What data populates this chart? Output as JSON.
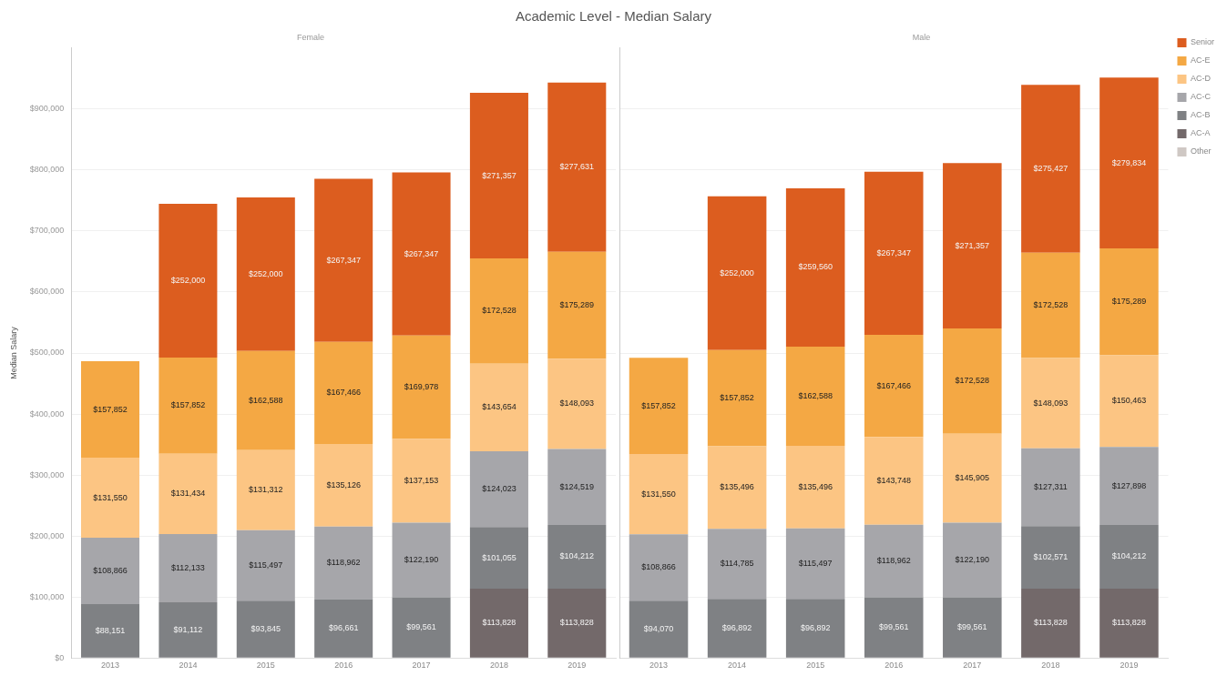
{
  "chart_data": [
    {
      "type": "bar",
      "title": "Academic Level - Median Salary",
      "subtitle": "Female",
      "ylabel": "Median Salary",
      "stacked": true,
      "grid": "y",
      "legend": false,
      "categories": [
        "2013",
        "2014",
        "2015",
        "2016",
        "2017",
        "2018",
        "2019"
      ],
      "ylim": [
        0,
        1000000
      ],
      "yticks": [
        {
          "value": 0,
          "label": "$0"
        },
        {
          "value": 100000,
          "label": "$100,000"
        },
        {
          "value": 200000,
          "label": "$200,000"
        },
        {
          "value": 300000,
          "label": "$300,000"
        },
        {
          "value": 400000,
          "label": "$400,000"
        },
        {
          "value": 500000,
          "label": "$500,000"
        },
        {
          "value": 600000,
          "label": "$600,000"
        },
        {
          "value": 700000,
          "label": "$700,000"
        },
        {
          "value": 800000,
          "label": "$800,000"
        },
        {
          "value": 900000,
          "label": "$900,000"
        }
      ],
      "series": [
        {
          "color": "#cfc8c4",
          "values": [
            null,
            null,
            null,
            null,
            null,
            null,
            null
          ]
        },
        {
          "color": "#73696a",
          "values": [
            null,
            null,
            null,
            null,
            null,
            113828,
            113828
          ],
          "value_labels": [
            null,
            null,
            null,
            null,
            null,
            "$113,828",
            "$113,828"
          ]
        },
        {
          "color": "#7f8184",
          "values": [
            88151,
            91112,
            93845,
            96661,
            99561,
            101055,
            104212
          ],
          "value_labels": [
            "$88,151",
            "$91,112",
            "$93,845",
            "$96,661",
            "$99,561",
            "$101,055",
            "$104,212"
          ]
        },
        {
          "color": "#a6a6aa",
          "values": [
            108866,
            112133,
            115497,
            118962,
            122190,
            124023,
            124519
          ],
          "value_labels": [
            "$108,866",
            "$112,133",
            "$115,497",
            "$118,962",
            "$122,190",
            "$124,023",
            "$124,519"
          ]
        },
        {
          "color": "#fcc583",
          "values": [
            131550,
            131434,
            131312,
            135126,
            137153,
            143654,
            148093
          ],
          "value_labels": [
            "$131,550",
            "$131,434",
            "$131,312",
            "$135,126",
            "$137,153",
            "$143,654",
            "$148,093"
          ]
        },
        {
          "color": "#f4a844",
          "values": [
            157852,
            157852,
            162588,
            167466,
            169978,
            172528,
            175289
          ],
          "value_labels": [
            "$157,852",
            "$157,852",
            "$162,588",
            "$167,466",
            "$169,978",
            "$172,528",
            "$175,289"
          ]
        },
        {
          "color": "#dc5d1f",
          "values": [
            null,
            252000,
            252000,
            267347,
            267347,
            271357,
            277631
          ],
          "value_labels": [
            null,
            "$252,000",
            "$252,000",
            "$267,347",
            "$267,347",
            "$271,357",
            "$277,631"
          ]
        }
      ]
    },
    {
      "type": "bar",
      "subtitle": "Male",
      "stacked": true,
      "grid": "y",
      "legend": "right",
      "tick_labels": "x",
      "categories": [
        "2013",
        "2014",
        "2015",
        "2016",
        "2017",
        "2018",
        "2019"
      ],
      "ylim": [
        0,
        1000000
      ],
      "yticks": [
        {
          "value": 0,
          "label": null
        },
        {
          "value": 100000,
          "label": null
        },
        {
          "value": 200000,
          "label": null
        },
        {
          "value": 300000,
          "label": null
        },
        {
          "value": 400000,
          "label": null
        },
        {
          "value": 500000,
          "label": null
        },
        {
          "value": 600000,
          "label": null
        },
        {
          "value": 700000,
          "label": null
        },
        {
          "value": 800000,
          "label": null
        },
        {
          "value": 900000,
          "label": null
        }
      ],
      "series": [
        {
          "name": "Other",
          "color": "#cfc8c4",
          "values": [
            null,
            null,
            null,
            null,
            null,
            null,
            null
          ]
        },
        {
          "name": "AC-A",
          "color": "#73696a",
          "values": [
            null,
            null,
            null,
            null,
            null,
            113828,
            113828
          ],
          "value_labels": [
            null,
            null,
            null,
            null,
            null,
            "$113,828",
            "$113,828"
          ]
        },
        {
          "name": "AC-B",
          "color": "#7f8184",
          "values": [
            94070,
            96892,
            96892,
            99561,
            99561,
            102571,
            104212
          ],
          "value_labels": [
            "$94,070",
            "$96,892",
            "$96,892",
            "$99,561",
            "$99,561",
            "$102,571",
            "$104,212"
          ]
        },
        {
          "name": "AC-C",
          "color": "#a6a6aa",
          "values": [
            108866,
            114785,
            115497,
            118962,
            122190,
            127311,
            127898
          ],
          "value_labels": [
            "$108,866",
            "$114,785",
            "$115,497",
            "$118,962",
            "$122,190",
            "$127,311",
            "$127,898"
          ]
        },
        {
          "name": "AC-D",
          "color": "#fcc583",
          "values": [
            131550,
            135496,
            135496,
            143748,
            145905,
            148093,
            150463
          ],
          "value_labels": [
            "$131,550",
            "$135,496",
            "$135,496",
            "$143,748",
            "$145,905",
            "$148,093",
            "$150,463"
          ]
        },
        {
          "name": "AC-E",
          "color": "#f4a844",
          "values": [
            157852,
            157852,
            162588,
            167466,
            172528,
            172528,
            175289
          ],
          "value_labels": [
            "$157,852",
            "$157,852",
            "$162,588",
            "$167,466",
            "$172,528",
            "$172,528",
            "$175,289"
          ]
        },
        {
          "name": "Senior",
          "color": "#dc5d1f",
          "values": [
            null,
            252000,
            259560,
            267347,
            271357,
            275427,
            279834
          ],
          "value_labels": [
            null,
            "$252,000",
            "$259,560",
            "$267,347",
            "$271,357",
            "$275,427",
            "$279,834"
          ]
        }
      ]
    }
  ]
}
